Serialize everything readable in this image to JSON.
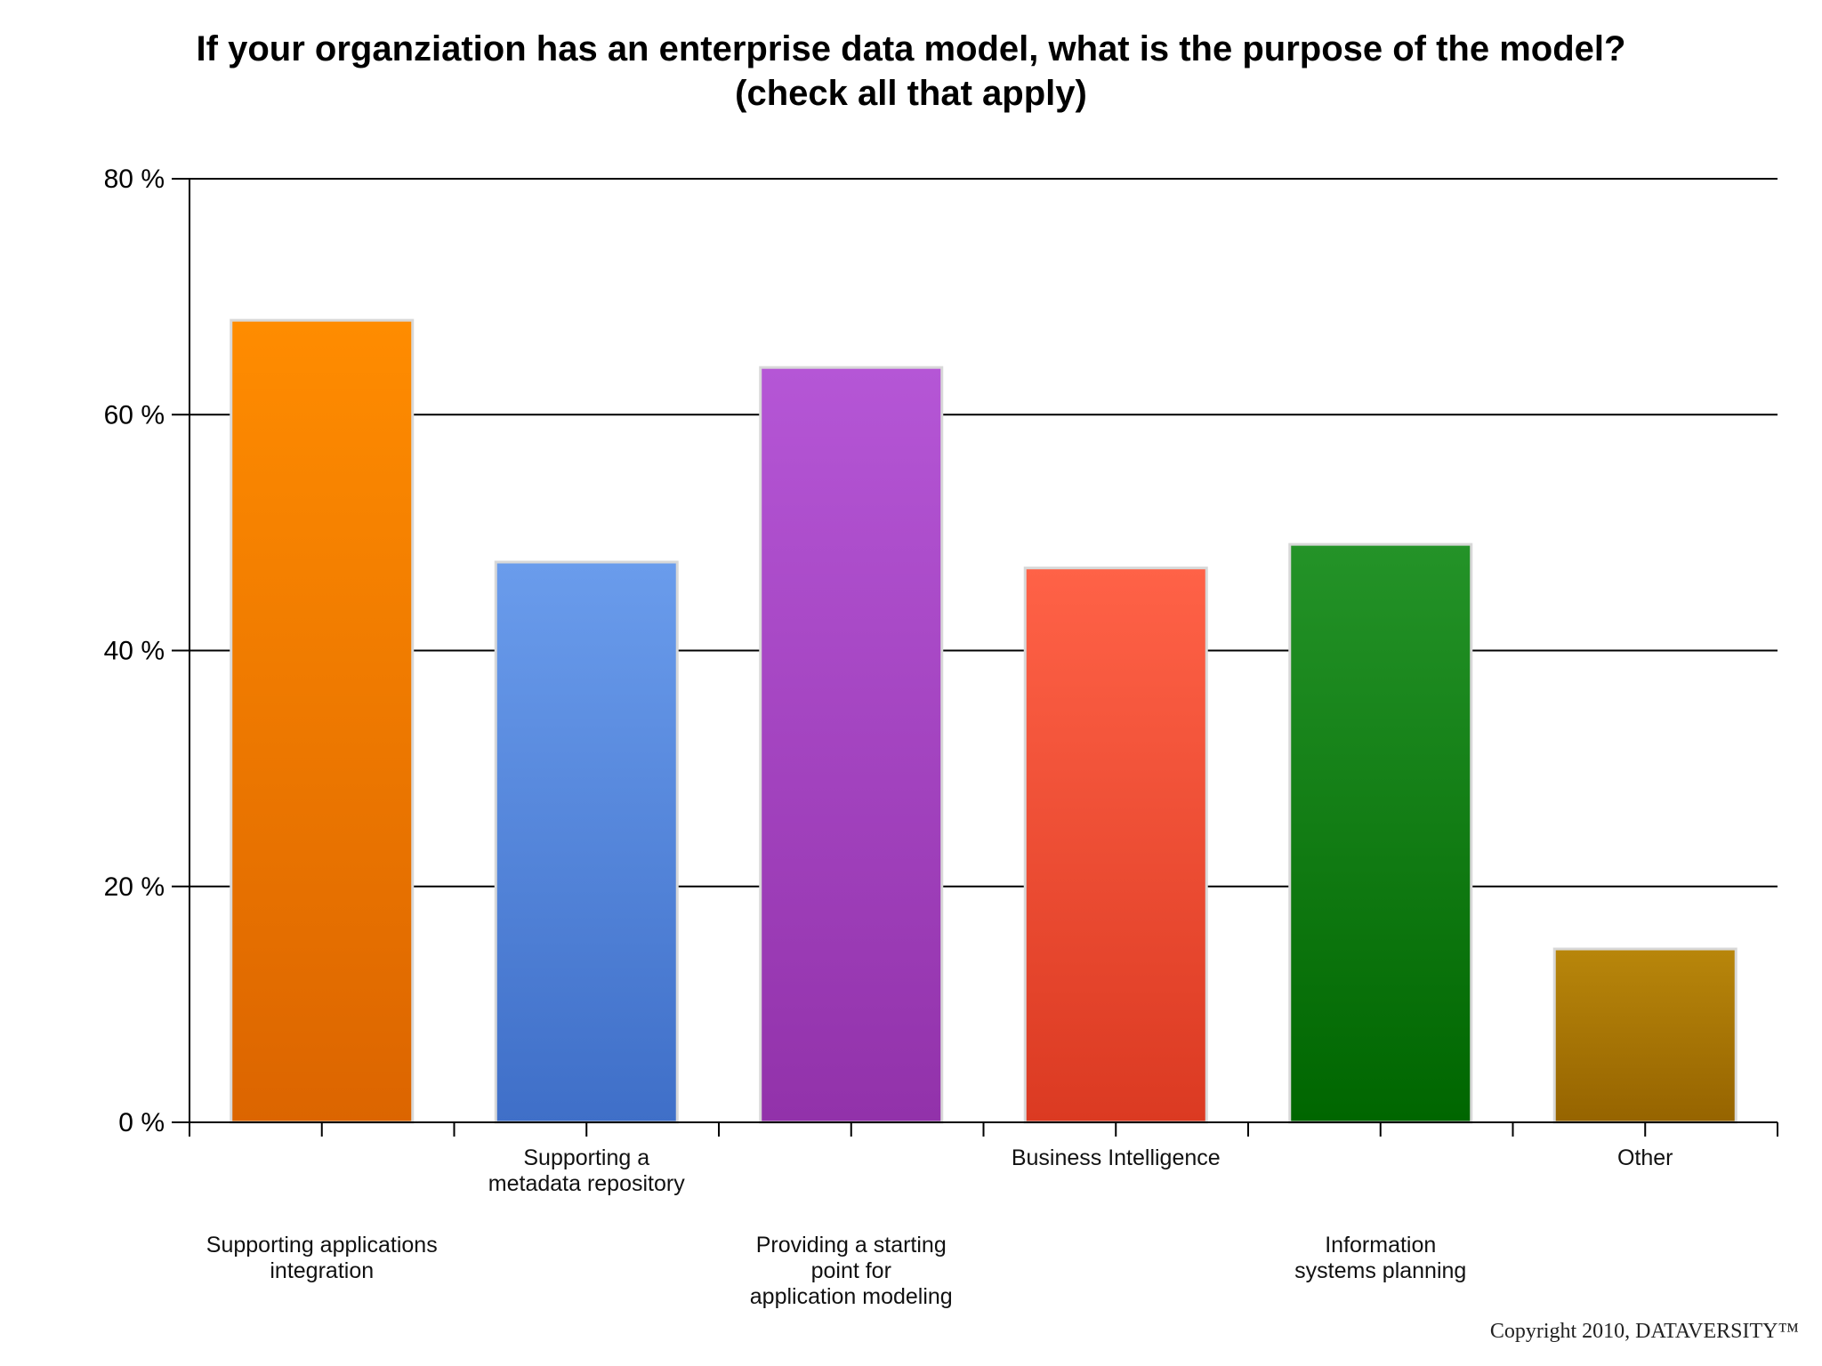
{
  "chart_data": {
    "type": "bar",
    "title_lines": [
      "If your organziation has an enterprise data model, what is the purpose of the model?",
      "(check all that apply)"
    ],
    "categories": [
      [
        "Supporting applications",
        "integration"
      ],
      [
        "Supporting a",
        "metadata repository"
      ],
      [
        "Providing a starting",
        "point for",
        "application modeling"
      ],
      [
        "Business Intelligence"
      ],
      [
        "Information",
        "systems planning"
      ],
      [
        "Other"
      ]
    ],
    "values": [
      68,
      47.5,
      64,
      47,
      49,
      14.7
    ],
    "y_unit": "%",
    "ylim": [
      0,
      80
    ],
    "yticks": [
      0,
      20,
      40,
      60,
      80
    ],
    "ytick_labels": [
      "0 %",
      "20 %",
      "40 %",
      "60 %",
      "80 %"
    ],
    "grid": true,
    "colors": [
      [
        "#ff8c00",
        "#dc6500"
      ],
      [
        "#6a9cec",
        "#3f6fc8"
      ],
      [
        "#b556d6",
        "#9232aa"
      ],
      [
        "#ff6247",
        "#db3a22"
      ],
      [
        "#249328",
        "#006600"
      ],
      [
        "#b8860b",
        "#966400"
      ]
    ]
  },
  "footer": {
    "copyright": "Copyright 2010, DATAVERSITY™"
  }
}
